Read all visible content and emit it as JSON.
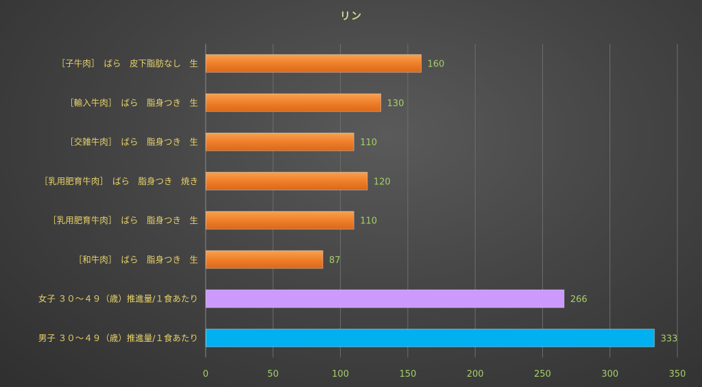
{
  "chart_data": {
    "type": "bar",
    "orientation": "horizontal",
    "title": "リン",
    "categories": [
      "［子牛肉］　ばら　皮下脂肪なし　生",
      "［輸入牛肉］　ばら　脂身つき　生",
      "［交雑牛肉］　ばら　脂身つき　生",
      "［乳用肥育牛肉］　ばら　脂身つき　焼き",
      "［乳用肥育牛肉］　ばら　脂身つき　生",
      "［和牛肉］　ばら　脂身つき　生",
      "女子 ３０～４９（歳）推進量/１食あたり",
      "男子 ３０～４９（歳）推進量/１食あたり"
    ],
    "values": [
      160,
      130,
      110,
      120,
      110,
      87,
      266,
      333
    ],
    "bar_colors": [
      "#f07f2a",
      "#f07f2a",
      "#f07f2a",
      "#f07f2a",
      "#f07f2a",
      "#f07f2a",
      "#cc99ff",
      "#00b0f0"
    ],
    "xlim": [
      0,
      350
    ],
    "xticks": [
      0,
      50,
      100,
      150,
      200,
      250,
      300,
      350
    ],
    "grid": true,
    "data_labels": true
  },
  "colors": {
    "title": "#c6e08a",
    "category_text": "#e8d36a",
    "value_text": "#a5cf68",
    "grid": "#6e6e6e",
    "axis": "#8a8a8a"
  }
}
